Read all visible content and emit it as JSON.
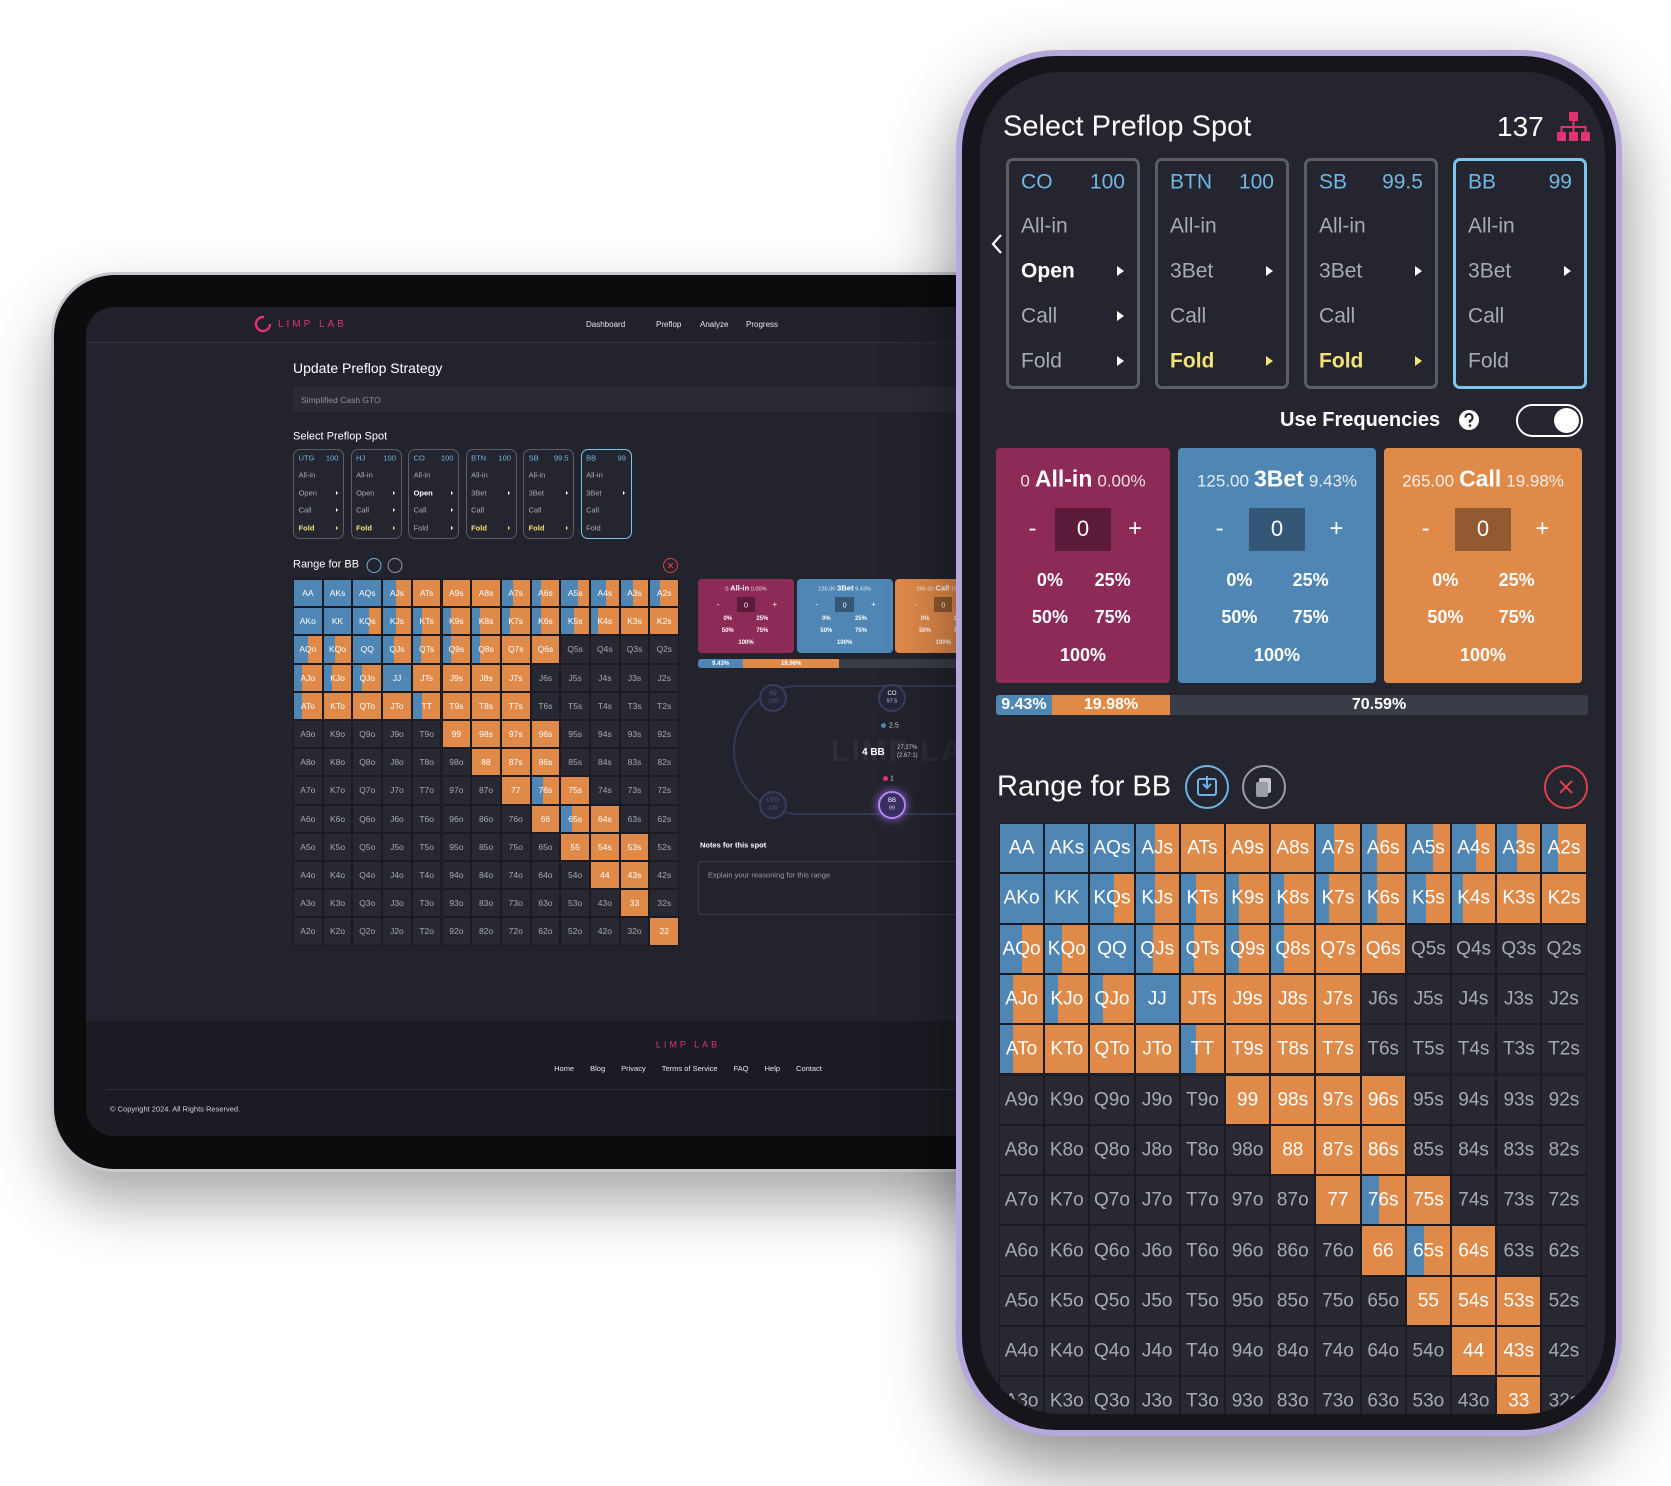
{
  "tablet": {
    "logo": "LIMP LAB",
    "nav": [
      "Dashboard",
      "Preflop",
      "Analyze",
      "Progress"
    ],
    "title": "Update Preflop Strategy",
    "strategy": "Simplified Cash GTO",
    "spot_title": "Select Preflop Spot",
    "positions": [
      {
        "name": "UTG",
        "stack": "100",
        "actions": [
          "All-in",
          "Open",
          "Call",
          "Fold"
        ],
        "next": [
          false,
          true,
          true,
          true
        ],
        "selected": 3,
        "selected_color": "#f3e27a",
        "active": false
      },
      {
        "name": "HJ",
        "stack": "100",
        "actions": [
          "All-in",
          "Open",
          "Call",
          "Fold"
        ],
        "next": [
          false,
          true,
          true,
          true
        ],
        "selected": 3,
        "selected_color": "#f3e27a",
        "active": false
      },
      {
        "name": "CO",
        "stack": "100",
        "actions": [
          "All-in",
          "Open",
          "Call",
          "Fold"
        ],
        "next": [
          false,
          true,
          true,
          true
        ],
        "selected": 1,
        "selected_color": "#ffffff",
        "active": false
      },
      {
        "name": "BTN",
        "stack": "100",
        "actions": [
          "All-in",
          "3Bet",
          "Call",
          "Fold"
        ],
        "next": [
          false,
          true,
          false,
          true
        ],
        "selected": 3,
        "selected_color": "#f3e27a",
        "active": false
      },
      {
        "name": "SB",
        "stack": "99.5",
        "actions": [
          "All-in",
          "3Bet",
          "Call",
          "Fold"
        ],
        "next": [
          false,
          true,
          false,
          true
        ],
        "selected": 3,
        "selected_color": "#f3e27a",
        "active": false
      },
      {
        "name": "BB",
        "stack": "99",
        "actions": [
          "All-in",
          "3Bet",
          "Call",
          "Fold"
        ],
        "next": [
          false,
          true,
          false,
          false
        ],
        "selected": null,
        "selected_color": "#f3e27a",
        "active": true
      }
    ],
    "range_title": "Range for BB",
    "table": {
      "seats": [
        {
          "name": "HJ",
          "stack": "100"
        },
        {
          "name": "CO",
          "stack": "97.5"
        },
        {
          "name": "UTG",
          "stack": "100"
        },
        {
          "name": "BB",
          "stack": "99"
        }
      ],
      "watermark": "LIMP LAB",
      "bet": "2.5",
      "pot": "4 BB",
      "odds": "27.27%",
      "ratio": "(2.67:1)",
      "bb_bet": "1"
    },
    "notes_label": "Notes for this spot",
    "notes_placeholder": "Explain your reasoning for this range",
    "footer": {
      "logo": "LIMP LAB",
      "links": [
        "Home",
        "Blog",
        "Privacy",
        "Terms of Service",
        "FAQ",
        "Help",
        "Contact"
      ],
      "copyright": "© Copyright 2024. All Rights Reserved."
    }
  },
  "phone": {
    "title": "Select Preflop Spot",
    "count": "137",
    "positions": [
      {
        "name": "CO",
        "stack": "100",
        "actions": [
          "All-in",
          "Open",
          "Call",
          "Fold"
        ],
        "next": [
          false,
          true,
          true,
          true
        ],
        "selected": 1,
        "selected_color": "#ffffff",
        "active": false
      },
      {
        "name": "BTN",
        "stack": "100",
        "actions": [
          "All-in",
          "3Bet",
          "Call",
          "Fold"
        ],
        "next": [
          false,
          true,
          false,
          true
        ],
        "selected": 3,
        "selected_color": "#f3e27a",
        "active": false
      },
      {
        "name": "SB",
        "stack": "99.5",
        "actions": [
          "All-in",
          "3Bet",
          "Call",
          "Fold"
        ],
        "next": [
          false,
          true,
          false,
          true
        ],
        "selected": 3,
        "selected_color": "#f3e27a",
        "active": false
      },
      {
        "name": "BB",
        "stack": "99",
        "actions": [
          "All-in",
          "3Bet",
          "Call",
          "Fold"
        ],
        "next": [
          false,
          true,
          false,
          false
        ],
        "selected": null,
        "selected_color": "#f3e27a",
        "active": true
      }
    ],
    "frequencies_label": "Use Frequencies",
    "frequencies_on": true,
    "range_title": "Range for BB"
  },
  "actions": [
    {
      "amount": "0",
      "name": "All-in",
      "frequency": "0.00%",
      "count": "0",
      "color": "#8e2a58"
    },
    {
      "amount": "125.00",
      "name": "3Bet",
      "frequency": "9.43%",
      "count": "0",
      "color": "#4f86b4"
    },
    {
      "amount": "265.00",
      "name": "Call",
      "frequency": "19.98%",
      "count": "0",
      "color": "#e08a4a"
    }
  ],
  "stepper": {
    "minus": "-",
    "plus": "+"
  },
  "presets": [
    "0%",
    "25%",
    "50%",
    "75%",
    "100%"
  ],
  "summary": [
    {
      "value": 9.43,
      "label": "9.43%",
      "color": "#4f86b4"
    },
    {
      "value": 19.98,
      "label": "19.98%",
      "color": "#e08a4a"
    },
    {
      "value": 70.59,
      "label": "70.59%",
      "color": "#3a3c48"
    }
  ],
  "range": {
    "colors": {
      "threebet": "#4f86b4",
      "call": "#e08a4a",
      "fold": "#272832"
    },
    "hands": [
      [
        "AA",
        "AKs",
        "AQs",
        "AJs",
        "ATs",
        "A9s",
        "A8s",
        "A7s",
        "A6s",
        "A5s",
        "A4s",
        "A3s",
        "A2s"
      ],
      [
        "AKo",
        "KK",
        "KQs",
        "KJs",
        "KTs",
        "K9s",
        "K8s",
        "K7s",
        "K6s",
        "K5s",
        "K4s",
        "K3s",
        "K2s"
      ],
      [
        "AQo",
        "KQo",
        "QQ",
        "QJs",
        "QTs",
        "Q9s",
        "Q8s",
        "Q7s",
        "Q6s",
        "Q5s",
        "Q4s",
        "Q3s",
        "Q2s"
      ],
      [
        "AJo",
        "KJo",
        "QJo",
        "JJ",
        "JTs",
        "J9s",
        "J8s",
        "J7s",
        "J6s",
        "J5s",
        "J4s",
        "J3s",
        "J2s"
      ],
      [
        "ATo",
        "KTo",
        "QTo",
        "JTo",
        "TT",
        "T9s",
        "T8s",
        "T7s",
        "T6s",
        "T5s",
        "T4s",
        "T3s",
        "T2s"
      ],
      [
        "A9o",
        "K9o",
        "Q9o",
        "J9o",
        "T9o",
        "99",
        "98s",
        "97s",
        "96s",
        "95s",
        "94s",
        "93s",
        "92s"
      ],
      [
        "A8o",
        "K8o",
        "Q8o",
        "J8o",
        "T8o",
        "98o",
        "88",
        "87s",
        "86s",
        "85s",
        "84s",
        "83s",
        "82s"
      ],
      [
        "A7o",
        "K7o",
        "Q7o",
        "J7o",
        "T7o",
        "97o",
        "87o",
        "77",
        "76s",
        "75s",
        "74s",
        "73s",
        "72s"
      ],
      [
        "A6o",
        "K6o",
        "Q6o",
        "J6o",
        "T6o",
        "96o",
        "86o",
        "76o",
        "66",
        "65s",
        "64s",
        "63s",
        "62s"
      ],
      [
        "A5o",
        "K5o",
        "Q5o",
        "J5o",
        "T5o",
        "95o",
        "85o",
        "75o",
        "65o",
        "55",
        "54s",
        "53s",
        "52s"
      ],
      [
        "A4o",
        "K4o",
        "Q4o",
        "J4o",
        "T4o",
        "94o",
        "84o",
        "74o",
        "64o",
        "54o",
        "44",
        "43s",
        "42s"
      ],
      [
        "A3o",
        "K3o",
        "Q3o",
        "J3o",
        "T3o",
        "93o",
        "83o",
        "73o",
        "63o",
        "53o",
        "43o",
        "33",
        "32s"
      ],
      [
        "A2o",
        "K2o",
        "Q2o",
        "J2o",
        "T2o",
        "92o",
        "82o",
        "72o",
        "62o",
        "52o",
        "42o",
        "32o",
        "22"
      ]
    ],
    "threebet": [
      [
        100,
        100,
        100,
        45,
        0,
        0,
        0,
        40,
        35,
        60,
        55,
        45,
        35
      ],
      [
        100,
        100,
        55,
        45,
        35,
        30,
        30,
        30,
        35,
        45,
        25,
        0,
        0
      ],
      [
        50,
        40,
        100,
        40,
        30,
        30,
        30,
        0,
        0,
        0,
        0,
        0,
        0
      ],
      [
        30,
        30,
        30,
        100,
        0,
        0,
        0,
        0,
        0,
        0,
        0,
        0,
        0
      ],
      [
        30,
        0,
        0,
        0,
        35,
        0,
        0,
        0,
        0,
        0,
        0,
        0,
        0
      ],
      [
        0,
        0,
        0,
        0,
        0,
        0,
        0,
        0,
        0,
        0,
        0,
        0,
        0
      ],
      [
        0,
        0,
        0,
        0,
        0,
        0,
        0,
        0,
        0,
        0,
        0,
        0,
        0
      ],
      [
        0,
        0,
        0,
        0,
        0,
        0,
        0,
        0,
        40,
        0,
        0,
        0,
        0
      ],
      [
        0,
        0,
        0,
        0,
        0,
        0,
        0,
        0,
        0,
        40,
        0,
        0,
        0
      ],
      [
        0,
        0,
        0,
        0,
        0,
        0,
        0,
        0,
        0,
        0,
        0,
        0,
        0
      ],
      [
        0,
        0,
        0,
        0,
        0,
        0,
        0,
        0,
        0,
        0,
        0,
        0,
        0
      ],
      [
        0,
        0,
        0,
        0,
        0,
        0,
        0,
        0,
        0,
        0,
        0,
        0,
        0
      ],
      [
        0,
        0,
        0,
        0,
        0,
        0,
        0,
        0,
        0,
        0,
        0,
        0,
        0
      ]
    ],
    "call": [
      [
        0,
        0,
        0,
        55,
        100,
        100,
        100,
        60,
        65,
        40,
        45,
        55,
        65
      ],
      [
        0,
        0,
        45,
        55,
        65,
        70,
        70,
        70,
        65,
        55,
        75,
        100,
        100
      ],
      [
        50,
        60,
        0,
        60,
        70,
        70,
        70,
        100,
        100,
        0,
        0,
        0,
        0
      ],
      [
        70,
        70,
        70,
        0,
        100,
        100,
        100,
        100,
        0,
        0,
        0,
        0,
        0
      ],
      [
        70,
        100,
        100,
        100,
        65,
        100,
        100,
        100,
        0,
        0,
        0,
        0,
        0
      ],
      [
        0,
        0,
        0,
        0,
        0,
        100,
        100,
        100,
        100,
        0,
        0,
        0,
        0
      ],
      [
        0,
        0,
        0,
        0,
        0,
        0,
        100,
        100,
        100,
        0,
        0,
        0,
        0
      ],
      [
        0,
        0,
        0,
        0,
        0,
        0,
        0,
        100,
        60,
        100,
        0,
        0,
        0
      ],
      [
        0,
        0,
        0,
        0,
        0,
        0,
        0,
        0,
        100,
        60,
        100,
        0,
        0
      ],
      [
        0,
        0,
        0,
        0,
        0,
        0,
        0,
        0,
        0,
        100,
        100,
        100,
        0
      ],
      [
        0,
        0,
        0,
        0,
        0,
        0,
        0,
        0,
        0,
        0,
        100,
        100,
        0
      ],
      [
        0,
        0,
        0,
        0,
        0,
        0,
        0,
        0,
        0,
        0,
        0,
        100,
        0
      ],
      [
        0,
        0,
        0,
        0,
        0,
        0,
        0,
        0,
        0,
        0,
        0,
        0,
        100
      ]
    ]
  }
}
